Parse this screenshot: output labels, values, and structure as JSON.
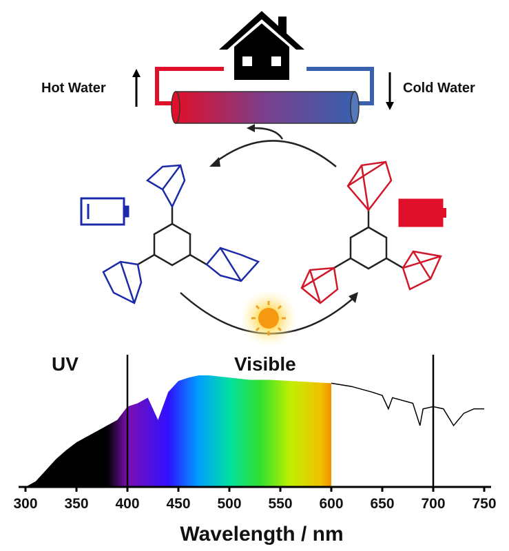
{
  "diagram": {
    "hot_water": "Hot Water",
    "cold_water": "Cold Water"
  },
  "chart_data": {
    "type": "area",
    "x": [
      300,
      310,
      320,
      330,
      340,
      350,
      360,
      370,
      380,
      390,
      400,
      410,
      420,
      430,
      440,
      450,
      460,
      470,
      480,
      490,
      500,
      520,
      540,
      560,
      580,
      600,
      620,
      640,
      650,
      656,
      660,
      680,
      687,
      690,
      700,
      710,
      720,
      730,
      740,
      750
    ],
    "values": [
      0,
      0.05,
      0.15,
      0.25,
      0.33,
      0.4,
      0.45,
      0.5,
      0.55,
      0.6,
      0.72,
      0.75,
      0.8,
      0.6,
      0.85,
      0.95,
      0.98,
      1.0,
      1.0,
      0.99,
      0.98,
      0.96,
      0.96,
      0.95,
      0.94,
      0.93,
      0.9,
      0.85,
      0.82,
      0.7,
      0.8,
      0.75,
      0.55,
      0.7,
      0.72,
      0.7,
      0.55,
      0.66,
      0.7,
      0.7
    ],
    "xlim": [
      300,
      750
    ],
    "xticks": [
      300,
      350,
      400,
      450,
      500,
      550,
      600,
      650,
      700,
      750
    ],
    "xlabel": "Wavelength / nm",
    "annotations": [
      "UV",
      "Visible"
    ],
    "vlines": [
      400,
      700
    ]
  }
}
